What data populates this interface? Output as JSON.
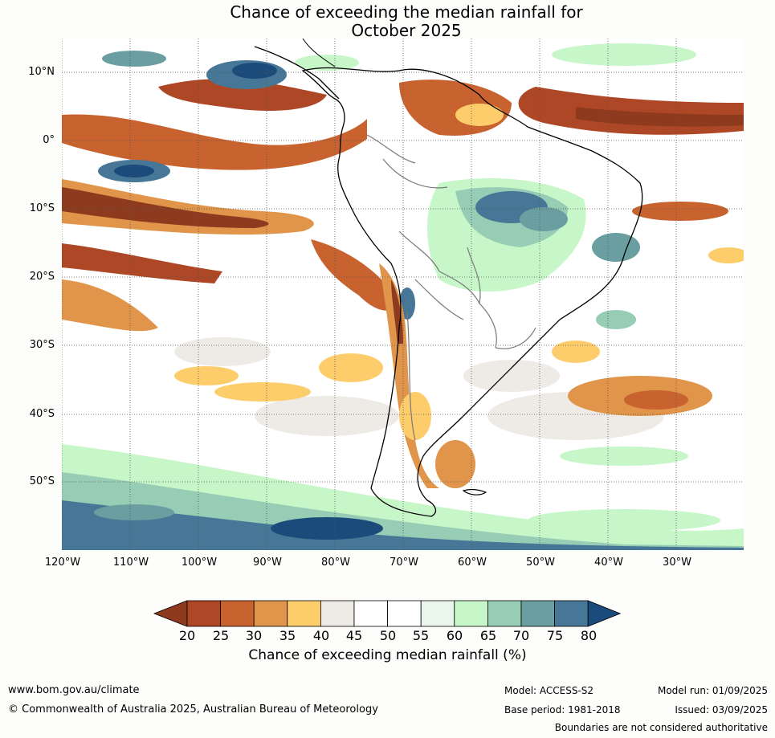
{
  "title_line1": "Chance of exceeding the median rainfall for",
  "title_line2": "October 2025",
  "lat_ticks": [
    "10°N",
    "0°",
    "10°S",
    "20°S",
    "30°S",
    "40°S",
    "50°S"
  ],
  "lon_ticks": [
    "120°W",
    "110°W",
    "100°W",
    "90°W",
    "80°W",
    "70°W",
    "60°W",
    "50°W",
    "40°W",
    "30°W"
  ],
  "colorbar": {
    "labels": [
      "20",
      "25",
      "30",
      "35",
      "40",
      "45",
      "50",
      "55",
      "60",
      "65",
      "70",
      "75",
      "80"
    ],
    "colors": [
      "#8e3a1e",
      "#ad4725",
      "#c8632f",
      "#e0954a",
      "#fdcd6c",
      "#eeebe7",
      "#ffffff",
      "#ffffff",
      "#eaf6ec",
      "#c7f7c8",
      "#98cdb5",
      "#6a9ea0",
      "#467797",
      "#1b4b7a"
    ],
    "title": "Chance of exceeding median rainfall (%)"
  },
  "footer": {
    "website": "www.bom.gov.au/climate",
    "copyright": "© Commonwealth of Australia 2025, Australian Bureau of Meteorology",
    "model": "Model: ACCESS-S2",
    "base_period": "Base period: 1981-2018",
    "model_run": "Model run: 01/09/2025",
    "issued": "Issued: 03/09/2025",
    "disclaimer": "Boundaries are not considered authoritative"
  }
}
